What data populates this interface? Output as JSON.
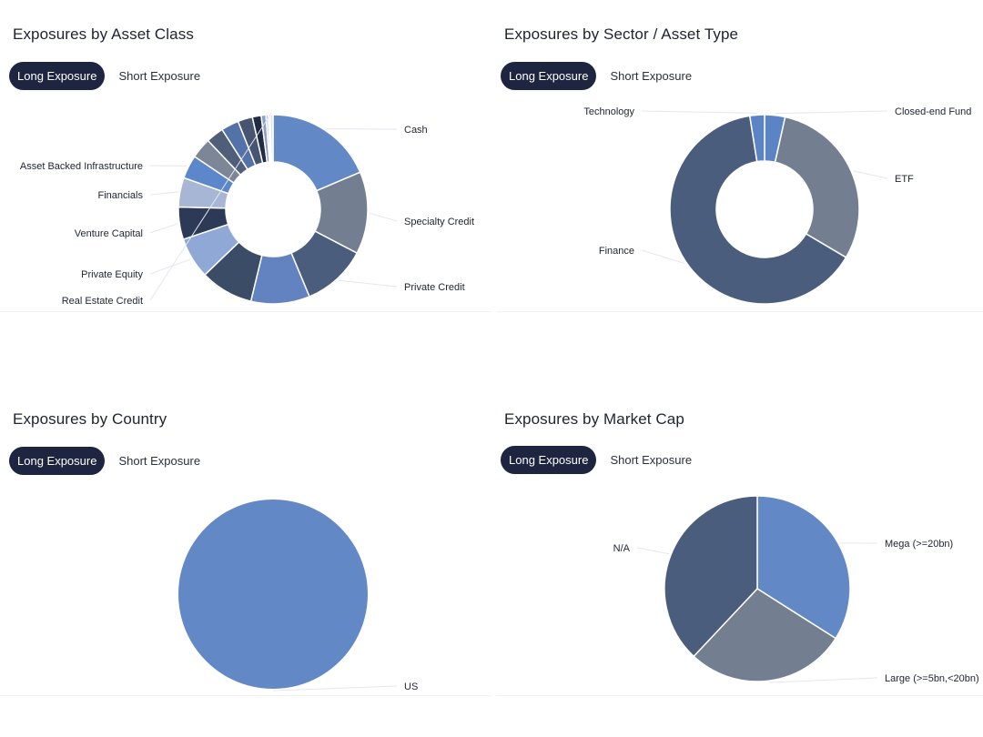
{
  "panels": [
    {
      "title": "Exposures by Asset Class",
      "toggle": {
        "active": "Long Exposure",
        "inactive": "Short Exposure"
      }
    },
    {
      "title": "Exposures by Sector / Asset Type",
      "toggle": {
        "active": "Long Exposure",
        "inactive": "Short Exposure"
      }
    },
    {
      "title": "Exposures by Country",
      "toggle": {
        "active": "Long Exposure",
        "inactive": "Short Exposure"
      }
    },
    {
      "title": "Exposures by Market Cap",
      "toggle": {
        "active": "Long Exposure",
        "inactive": "Short Exposure"
      }
    }
  ],
  "chart_data": [
    {
      "type": "pie",
      "variant": "donut",
      "title": "Exposures by Asset Class",
      "categories": [
        "Cash",
        "Specialty Credit",
        "Private Credit",
        "",
        "",
        "Private Equity",
        "Venture Capital",
        "Financials",
        "Asset Backed Infrastructure",
        "",
        "",
        "",
        "",
        "",
        "",
        "",
        "",
        "Real Estate Credit"
      ],
      "values": [
        18.5,
        14.0,
        11.0,
        10.0,
        9.0,
        7.0,
        5.5,
        5.0,
        4.0,
        3.5,
        3.0,
        3.0,
        2.5,
        1.5,
        0.8,
        0.4,
        0.3,
        0.5
      ],
      "colors": [
        "#6289c5",
        "#737e91",
        "#4a5d7d",
        "#6282c0",
        "#3b4c67",
        "#90a8d5",
        "#2d3a57",
        "#a8b6d6",
        "#5c88cb",
        "#7c8696",
        "#505e79",
        "#5272a8",
        "#475572",
        "#222b45",
        "#8aa0c4",
        "#bfc7d8",
        "#c9d2e3",
        "#dfe4ee"
      ],
      "labeled": [
        0,
        1,
        2,
        5,
        6,
        7,
        8,
        17
      ]
    },
    {
      "type": "pie",
      "variant": "donut",
      "title": "Exposures by Sector / Asset Type",
      "categories": [
        "Closed-end Fund",
        "ETF",
        "Finance",
        "Technology"
      ],
      "values": [
        3.5,
        30.0,
        64.0,
        2.5
      ],
      "colors": [
        "#5b84c6",
        "#737e91",
        "#4b5d7c",
        "#5b84c6"
      ]
    },
    {
      "type": "pie",
      "title": "Exposures by Country",
      "categories": [
        "US"
      ],
      "values": [
        100
      ],
      "colors": [
        "#6289c5"
      ]
    },
    {
      "type": "pie",
      "title": "Exposures by Market Cap",
      "categories": [
        "Mega (>=20bn)",
        "Large (>=5bn,<20bn)",
        "N/A"
      ],
      "values": [
        34,
        28,
        38
      ],
      "colors": [
        "#6289c5",
        "#737e91",
        "#4b5d7c"
      ]
    }
  ]
}
